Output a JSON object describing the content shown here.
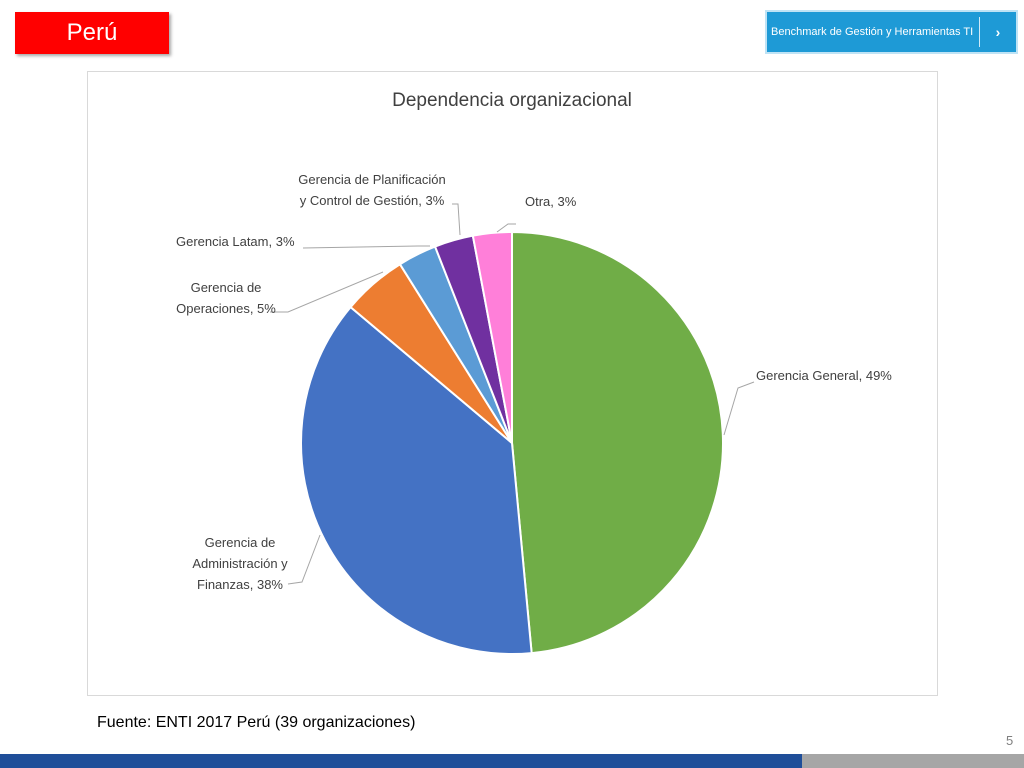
{
  "header": {
    "country": "Perú",
    "benchmark_label": "Benchmark de Gestión y Herramientas TI",
    "benchmark_arrow": "›"
  },
  "colors": {
    "country_tag": "#ff0000",
    "benchmark_button": "#1e9ad6",
    "footer_bar": "#1f4e99"
  },
  "chart_data": {
    "type": "pie",
    "title": "Dependencia organizacional",
    "series": [
      {
        "labels": [
          "Gerencia General",
          "Gerencia de Administración y Finanzas",
          "Gerencia de Operaciones",
          "Gerencia Latam",
          "Gerencia de Planificación y Control de Gestión",
          "Otra"
        ],
        "values": [
          49,
          38,
          5,
          3,
          3,
          3
        ],
        "colors": [
          "#70ad47",
          "#4472c4",
          "#ed7d31",
          "#5b9bd5",
          "#7030a0",
          "#ff7fd9"
        ]
      }
    ],
    "data_labels": [
      [
        "Gerencia General, 49%"
      ],
      [
        "Gerencia de",
        "Administración y",
        "Finanzas, 38%"
      ],
      [
        "Gerencia de",
        "Operaciones, 5%"
      ],
      [
        "Gerencia Latam, 3%"
      ],
      [
        "Gerencia de Planificación",
        "y Control de Gestión, 3%"
      ],
      [
        "Otra, 3%"
      ]
    ]
  },
  "footer": {
    "source": "Fuente: ENTI 2017 Perú (39 organizaciones)",
    "page_number": "5"
  }
}
